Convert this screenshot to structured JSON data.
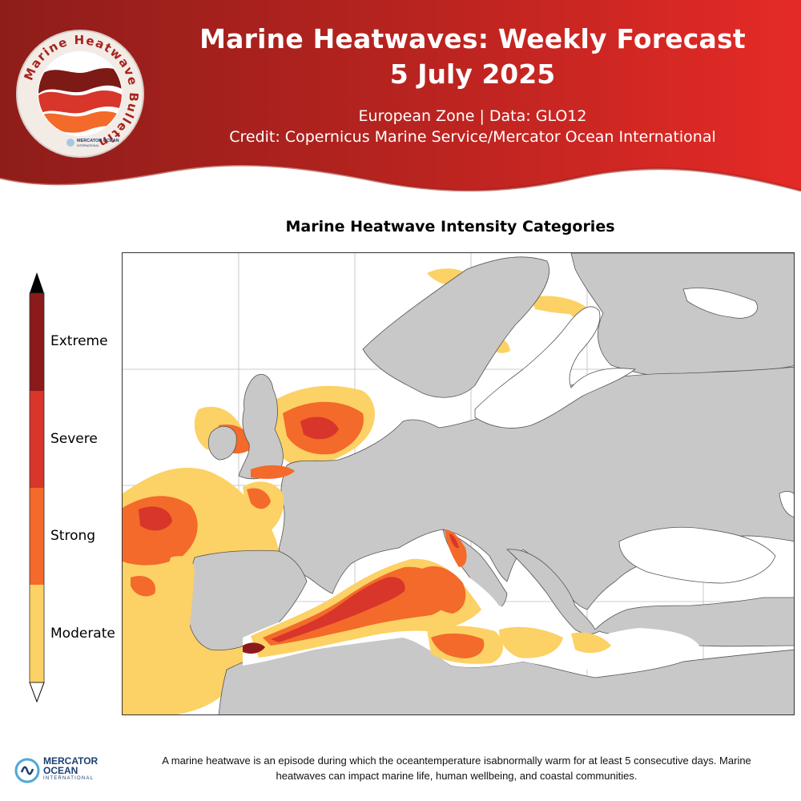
{
  "header": {
    "title_line1": "Marine Heatwaves: Weekly Forecast",
    "title_line2": "5 July 2025",
    "subtitle_line1": "European Zone  |  Data: GLO12",
    "subtitle_line2": "Credit: Copernicus Marine Service/Mercator Ocean International",
    "banner_color_dark": "#8e1d1a",
    "banner_color_light": "#e52a26"
  },
  "badge": {
    "ring_text": "Marine Heatwave Bulletin",
    "logo_text": "MERCATOR OCEAN",
    "logo_subtext": "INTERNATIONAL",
    "icon": "wave-stripes-icon"
  },
  "map": {
    "title": "Marine Heatwave Intensity Categories",
    "region": "European Zone",
    "land_color": "#c8c8c8",
    "sea_color": "#ffffff"
  },
  "legend": {
    "categories": [
      {
        "label": "Extreme",
        "color": "#8b1a1a"
      },
      {
        "label": "Severe",
        "color": "#d8352b"
      },
      {
        "label": "Strong",
        "color": "#f36a2a"
      },
      {
        "label": "Moderate",
        "color": "#fcd165"
      }
    ]
  },
  "footer": {
    "logo_name_line1": "MERCATOR",
    "logo_name_line2": "OCEAN",
    "logo_sub": "INTERNATIONAL",
    "description": "A marine heatwave is an episode during which the oceantemperature isabnormally warm for at least 5 consecutive days. Marine heatwaves can impact marine life, human wellbeing, and coastal communities."
  }
}
